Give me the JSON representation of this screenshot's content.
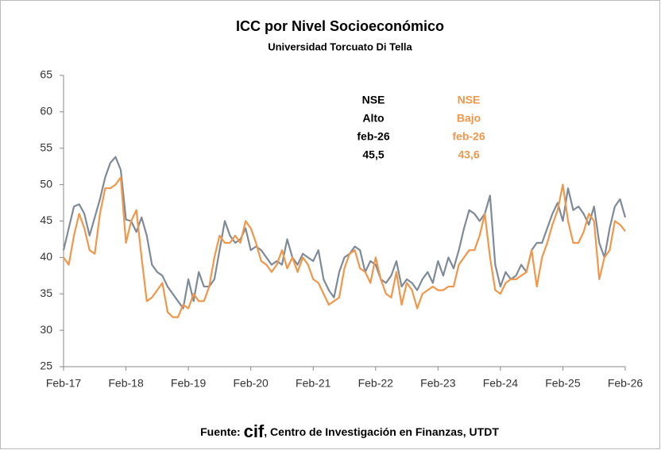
{
  "chart_data": {
    "type": "line",
    "title": "ICC por Nivel Socioeconómico",
    "subtitle": "Universidad Torcuato Di Tella",
    "categories": [
      "Feb-17",
      null,
      null,
      null,
      null,
      null,
      null,
      null,
      null,
      null,
      null,
      null,
      "Feb-18",
      null,
      null,
      null,
      null,
      null,
      null,
      null,
      null,
      null,
      null,
      null,
      "Feb-19",
      null,
      null,
      null,
      null,
      null,
      null,
      null,
      null,
      null,
      null,
      null,
      "Feb-20",
      null,
      null,
      null,
      null,
      null,
      null,
      null,
      null,
      null,
      null,
      null,
      "Feb-21",
      null,
      null,
      null,
      null,
      null,
      null,
      null,
      null,
      null,
      null,
      null,
      "Feb-22",
      null,
      null,
      null,
      null,
      null,
      null,
      null,
      null,
      null,
      null,
      null,
      "Feb-23",
      null,
      null,
      null,
      null,
      null,
      null,
      null,
      null,
      null,
      null,
      null,
      "Feb-24",
      null,
      null,
      null,
      null,
      null,
      null,
      null,
      null,
      null,
      null,
      null,
      "Feb-25",
      null,
      null,
      null,
      null,
      null,
      null,
      null,
      null,
      null,
      null,
      null,
      "Feb-26"
    ],
    "series": [
      {
        "color": "#7f8a99",
        "values": [
          41,
          44,
          47,
          47.3,
          46,
          43,
          45.5,
          48,
          51,
          53,
          53.8,
          52,
          45.2,
          45,
          43.5,
          45.5,
          43,
          39,
          38,
          37.5,
          36,
          35,
          34,
          33,
          37,
          34,
          38,
          36,
          36,
          37,
          41,
          45,
          43,
          42,
          42.5,
          44,
          41,
          41.5,
          41,
          40,
          39,
          39.5,
          39,
          42.5,
          40,
          39,
          40.5,
          40,
          39.5,
          41,
          37,
          35.5,
          34.5,
          38,
          40,
          40.5,
          41.5,
          41,
          38,
          39.5,
          39,
          37,
          36.5,
          37.5,
          39.5,
          36,
          37,
          36.5,
          35.5,
          37,
          38,
          36.5,
          39.5,
          37.5,
          40,
          38.5,
          41,
          44,
          46.5,
          46,
          45,
          46,
          48.5,
          39,
          36,
          38,
          37,
          37.5,
          39,
          38,
          41,
          42,
          42,
          44,
          46,
          47.5,
          45,
          49.5,
          46.5,
          47,
          46,
          44.5,
          47,
          42,
          40,
          44,
          47,
          48,
          45.5
        ]
      },
      {
        "color": "#f0974a",
        "values": [
          40,
          39,
          43,
          46,
          44,
          41,
          40.5,
          46,
          49.5,
          49.5,
          50,
          51,
          42,
          45,
          46.5,
          40,
          34,
          34.5,
          35.5,
          36.5,
          32.5,
          31.8,
          31.8,
          33.5,
          33,
          35,
          34,
          34,
          36,
          40,
          43,
          42,
          42,
          43,
          42,
          45,
          44,
          42,
          39.5,
          39,
          38,
          39,
          41,
          38.5,
          40,
          38,
          40,
          39,
          37,
          36.5,
          35,
          33.5,
          34,
          34.5,
          38.5,
          40.5,
          41,
          38.5,
          38,
          36.5,
          40,
          37,
          35,
          34.5,
          38,
          33.5,
          36.5,
          35.5,
          33,
          35,
          35.5,
          36,
          35.5,
          35.5,
          36,
          36,
          39,
          40,
          41,
          41,
          43,
          46,
          40,
          35.5,
          35,
          36.5,
          37,
          37,
          37.5,
          38,
          41,
          36,
          40,
          42,
          44.5,
          46.5,
          50,
          45,
          42,
          42,
          43.5,
          46,
          45,
          37,
          40,
          41,
          45,
          44.5,
          43.6
        ]
      }
    ],
    "ylim": [
      25,
      65
    ],
    "yticks": [
      25,
      30,
      35,
      40,
      45,
      50,
      55,
      60,
      65
    ],
    "grid": false,
    "annotations": [
      {
        "lines": [
          "NSE",
          "Alto",
          "feb-26",
          "45,5"
        ],
        "color": "#000000"
      },
      {
        "lines": [
          "NSE",
          "Bajo",
          "feb-26",
          "43,6"
        ],
        "color": "#f0974a"
      }
    ],
    "source": [
      "Fuente:",
      "cif",
      ", Centro de Investigación en Finanzas, UTDT"
    ]
  }
}
